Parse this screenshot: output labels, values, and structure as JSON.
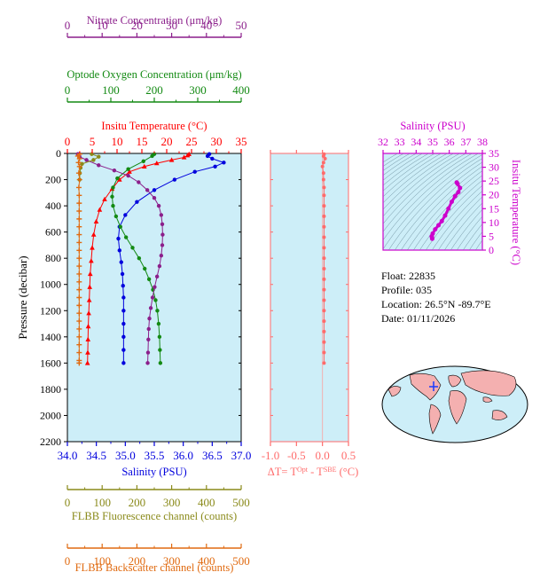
{
  "colors": {
    "nitrate": "#8b1f8b",
    "oxygen": "#138a13",
    "temperature": "#ff0000",
    "salinity": "#0000dd",
    "salinity_panel": "#cc00cc",
    "delta": "#ff6b6b",
    "fluorescence": "#8a8a1a",
    "backscatter": "#e06a10",
    "plot_bg": "#cdeef8"
  },
  "float_info": {
    "float": "Float:  22835",
    "profile": "Profile:  035",
    "location": "Location:  26.5°N  -89.7°E",
    "date": "Date:  01/11/2026"
  },
  "chart_data": [
    {
      "type": "line",
      "panel": "main",
      "ylabel": "Pressure (decibar)",
      "ylim": [
        2200,
        0
      ],
      "yticks": [
        0,
        200,
        400,
        600,
        800,
        1000,
        1200,
        1400,
        1600,
        1800,
        2000,
        2200
      ],
      "axes": [
        {
          "key": "nitrate",
          "label": "Nitrate Concentration (μm/kg)",
          "range": [
            0,
            50
          ],
          "ticks": [
            0,
            10,
            20,
            30,
            40,
            50
          ]
        },
        {
          "key": "oxygen",
          "label": "Optode Oxygen Concentration (μm/kg)",
          "range": [
            0,
            400
          ],
          "ticks": [
            0,
            100,
            200,
            300,
            400
          ]
        },
        {
          "key": "temperature",
          "label": "Insitu Temperature (°C)",
          "range": [
            0,
            35
          ],
          "ticks": [
            0,
            5,
            10,
            15,
            20,
            25,
            30,
            35
          ]
        },
        {
          "key": "salinity",
          "label": "Salinity (PSU)",
          "range": [
            34.0,
            37.0
          ],
          "ticks": [
            "34.0",
            "34.5",
            "35.0",
            "35.5",
            "36.0",
            "36.5",
            "37.0"
          ]
        },
        {
          "key": "fluorescence",
          "label": "FLBB Fluorescence channel (counts)",
          "range": [
            0,
            500
          ],
          "ticks": [
            0,
            100,
            200,
            300,
            400,
            500
          ]
        },
        {
          "key": "backscatter",
          "label": "FLBB Backscatter channel (counts)",
          "range": [
            0,
            500
          ],
          "ticks": [
            0,
            100,
            200,
            300,
            400,
            500
          ]
        }
      ],
      "series": [
        {
          "key": "temperature",
          "marker": "triangle",
          "points": [
            [
              24.5,
              5
            ],
            [
              24.2,
              15
            ],
            [
              23.5,
              30
            ],
            [
              21,
              50
            ],
            [
              18,
              75
            ],
            [
              15.5,
              100
            ],
            [
              12.5,
              140
            ],
            [
              10.5,
              200
            ],
            [
              9,
              270
            ],
            [
              7.5,
              350
            ],
            [
              6.5,
              430
            ],
            [
              5.8,
              520
            ],
            [
              5.3,
              620
            ],
            [
              5,
              720
            ],
            [
              4.8,
              820
            ],
            [
              4.6,
              920
            ],
            [
              4.5,
              1020
            ],
            [
              4.4,
              1120
            ],
            [
              4.3,
              1220
            ],
            [
              4.2,
              1320
            ],
            [
              4.15,
              1420
            ],
            [
              4.1,
              1520
            ],
            [
              4.05,
              1600
            ]
          ]
        },
        {
          "key": "salinity",
          "marker": "circle",
          "points": [
            [
              36.45,
              5
            ],
            [
              36.42,
              20
            ],
            [
              36.5,
              40
            ],
            [
              36.7,
              70
            ],
            [
              36.55,
              100
            ],
            [
              36.2,
              140
            ],
            [
              35.85,
              200
            ],
            [
              35.5,
              280
            ],
            [
              35.2,
              370
            ],
            [
              35.0,
              470
            ],
            [
              34.9,
              560
            ],
            [
              34.88,
              650
            ],
            [
              34.9,
              740
            ],
            [
              34.93,
              830
            ],
            [
              34.95,
              920
            ],
            [
              34.96,
              1010
            ],
            [
              34.97,
              1100
            ],
            [
              34.97,
              1200
            ],
            [
              34.97,
              1300
            ],
            [
              34.97,
              1400
            ],
            [
              34.97,
              1500
            ],
            [
              34.97,
              1600
            ]
          ]
        },
        {
          "key": "oxygen",
          "marker": "circle",
          "points": [
            [
              200,
              5
            ],
            [
              195,
              20
            ],
            [
              175,
              60
            ],
            [
              140,
              120
            ],
            [
              115,
              190
            ],
            [
              105,
              260
            ],
            [
              103,
              330
            ],
            [
              105,
              400
            ],
            [
              112,
              480
            ],
            [
              122,
              560
            ],
            [
              135,
              640
            ],
            [
              150,
              720
            ],
            [
              165,
              800
            ],
            [
              178,
              880
            ],
            [
              188,
              960
            ],
            [
              197,
              1040
            ],
            [
              203,
              1120
            ],
            [
              207,
              1200
            ],
            [
              210,
              1300
            ],
            [
              212,
              1400
            ],
            [
              213,
              1500
            ],
            [
              214,
              1600
            ]
          ]
        },
        {
          "key": "nitrate",
          "marker": "circle",
          "points": [
            [
              3,
              5
            ],
            [
              3.5,
              25
            ],
            [
              5.5,
              50
            ],
            [
              9,
              90
            ],
            [
              13.5,
              130
            ],
            [
              17.5,
              170
            ],
            [
              20.5,
              220
            ],
            [
              23,
              280
            ],
            [
              25,
              340
            ],
            [
              26.3,
              400
            ],
            [
              27,
              470
            ],
            [
              27.3,
              540
            ],
            [
              27.4,
              620
            ],
            [
              27.3,
              700
            ],
            [
              27,
              780
            ],
            [
              26.5,
              860
            ],
            [
              25.8,
              940
            ],
            [
              25.1,
              1020
            ],
            [
              24.5,
              1100
            ],
            [
              24,
              1180
            ],
            [
              23.6,
              1260
            ],
            [
              23.4,
              1340
            ],
            [
              23.3,
              1420
            ],
            [
              23.2,
              1520
            ],
            [
              23.1,
              1600
            ]
          ]
        },
        {
          "key": "fluorescence",
          "marker": "circle",
          "points": [
            [
              70,
              5
            ],
            [
              90,
              25
            ],
            [
              75,
              50
            ],
            [
              42,
              80
            ],
            [
              38,
              110
            ],
            [
              36,
              150
            ],
            [
              35,
              200
            ]
          ]
        },
        {
          "key": "backscatter",
          "marker": "plus",
          "points": [
            [
              35,
              5
            ],
            [
              30,
              20
            ],
            [
              35,
              40
            ],
            [
              32,
              70
            ],
            [
              35,
              100
            ],
            [
              33,
              150
            ],
            [
              35,
              200
            ],
            [
              33,
              260
            ],
            [
              34,
              320
            ],
            [
              34,
              380
            ],
            [
              34,
              440
            ],
            [
              34,
              500
            ],
            [
              34,
              560
            ],
            [
              34,
              620
            ],
            [
              34,
              680
            ],
            [
              34,
              740
            ],
            [
              34,
              800
            ],
            [
              34,
              860
            ],
            [
              34,
              920
            ],
            [
              34,
              980
            ],
            [
              34,
              1040
            ],
            [
              34,
              1100
            ],
            [
              34,
              1160
            ],
            [
              34,
              1220
            ],
            [
              34,
              1280
            ],
            [
              34,
              1340
            ],
            [
              34,
              1400
            ],
            [
              34,
              1460
            ],
            [
              34,
              1520
            ],
            [
              34,
              1580
            ],
            [
              34,
              1600
            ]
          ]
        }
      ]
    },
    {
      "type": "line",
      "panel": "delta",
      "xlabel": "ΔT= T^Opt - T^SBE (°C)",
      "xlim": [
        -1.0,
        0.5
      ],
      "xticks": [
        "-1.0",
        "-0.5",
        "0.0",
        "0.5"
      ],
      "ylim": [
        2200,
        0
      ],
      "points": [
        [
          0.03,
          5
        ],
        [
          0.02,
          20
        ],
        [
          0.05,
          40
        ],
        [
          0.02,
          70
        ],
        [
          0.0,
          100
        ],
        [
          0.02,
          150
        ],
        [
          0.02,
          200
        ],
        [
          0.03,
          260
        ],
        [
          0.03,
          320
        ],
        [
          0.03,
          400
        ],
        [
          0.03,
          480
        ],
        [
          0.03,
          560
        ],
        [
          0.03,
          640
        ],
        [
          0.03,
          720
        ],
        [
          0.03,
          800
        ],
        [
          0.03,
          880
        ],
        [
          0.03,
          960
        ],
        [
          0.03,
          1040
        ],
        [
          0.03,
          1120
        ],
        [
          0.03,
          1200
        ],
        [
          0.03,
          1280
        ],
        [
          0.03,
          1360
        ],
        [
          0.03,
          1440
        ],
        [
          0.03,
          1520
        ],
        [
          0.03,
          1600
        ]
      ]
    },
    {
      "type": "line",
      "panel": "ts",
      "xlabel": "Salinity (PSU)",
      "ylabel": "Insitu Temperature (°C)",
      "xlim": [
        32,
        38
      ],
      "ylim": [
        0,
        35
      ],
      "xticks": [
        32,
        33,
        34,
        35,
        36,
        37,
        38
      ],
      "yticks": [
        0,
        5,
        10,
        15,
        20,
        25,
        30,
        35
      ],
      "points": [
        [
          34.97,
          4.1
        ],
        [
          34.96,
          4.5
        ],
        [
          34.94,
          5.0
        ],
        [
          35.0,
          6.0
        ],
        [
          35.15,
          7.5
        ],
        [
          35.35,
          9.0
        ],
        [
          35.55,
          10.5
        ],
        [
          35.75,
          12.5
        ],
        [
          35.95,
          15.0
        ],
        [
          36.15,
          17.5
        ],
        [
          36.35,
          19.5
        ],
        [
          36.55,
          21.0
        ],
        [
          36.65,
          22.5
        ],
        [
          36.5,
          24.0
        ],
        [
          36.45,
          24.5
        ]
      ]
    }
  ]
}
